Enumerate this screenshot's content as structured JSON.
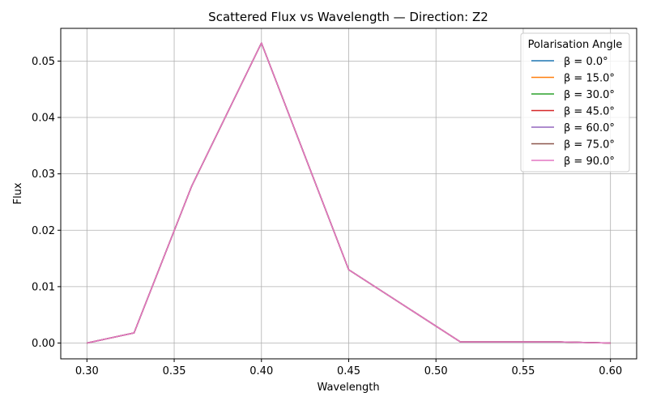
{
  "chart_data": {
    "type": "line",
    "title": "Scattered Flux vs Wavelength — Direction: Z2",
    "xlabel": "Wavelength",
    "ylabel": "Flux",
    "xlim": [
      0.285,
      0.615
    ],
    "ylim": [
      -0.0028,
      0.0558
    ],
    "xticks": [
      0.3,
      0.35,
      0.4,
      0.45,
      0.5,
      0.55,
      0.6
    ],
    "xtick_labels": [
      "0.30",
      "0.35",
      "0.40",
      "0.45",
      "0.50",
      "0.55",
      "0.60"
    ],
    "yticks": [
      0.0,
      0.01,
      0.02,
      0.03,
      0.04,
      0.05
    ],
    "ytick_labels": [
      "0.00",
      "0.01",
      "0.02",
      "0.03",
      "0.04",
      "0.05"
    ],
    "grid": true,
    "legend": {
      "title": "Polarisation Angle",
      "placement": "top-right"
    },
    "x": [
      0.3,
      0.327,
      0.36,
      0.4,
      0.45,
      0.514,
      0.571,
      0.6
    ],
    "series": [
      {
        "name": "β = 0.0°",
        "color": "#1f77b4",
        "values": [
          0.0,
          0.0018,
          0.0278,
          0.0532,
          0.013,
          0.0002,
          0.0002,
          0.0
        ]
      },
      {
        "name": "β = 15.0°",
        "color": "#ff7f0e",
        "values": [
          0.0,
          0.0018,
          0.0278,
          0.0532,
          0.013,
          0.0002,
          0.0002,
          0.0
        ]
      },
      {
        "name": "β = 30.0°",
        "color": "#2ca02c",
        "values": [
          0.0,
          0.0018,
          0.0278,
          0.0532,
          0.013,
          0.0002,
          0.0002,
          0.0
        ]
      },
      {
        "name": "β = 45.0°",
        "color": "#d62728",
        "values": [
          0.0,
          0.0018,
          0.0278,
          0.0532,
          0.013,
          0.0002,
          0.0002,
          0.0
        ]
      },
      {
        "name": "β = 60.0°",
        "color": "#9467bd",
        "values": [
          0.0,
          0.0018,
          0.0278,
          0.0532,
          0.013,
          0.0002,
          0.0002,
          0.0
        ]
      },
      {
        "name": "β = 75.0°",
        "color": "#8c564b",
        "values": [
          0.0,
          0.0018,
          0.0278,
          0.0532,
          0.013,
          0.0002,
          0.0002,
          0.0
        ]
      },
      {
        "name": "β = 90.0°",
        "color": "#e377c2",
        "values": [
          0.0,
          0.0018,
          0.0278,
          0.0532,
          0.013,
          0.0002,
          0.0002,
          0.0
        ]
      }
    ]
  }
}
